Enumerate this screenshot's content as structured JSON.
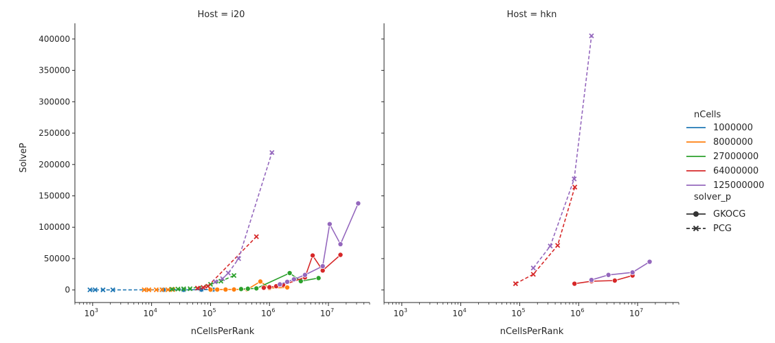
{
  "chart_data": {
    "type": "line",
    "facet_titles": [
      "Host = i20",
      "Host = hkn"
    ],
    "xlabel": "nCellsPerRank",
    "ylabel": "SolveP",
    "x_scale": "log",
    "xlim": [
      500,
      50000000
    ],
    "ylim": [
      -20000,
      425000
    ],
    "x_ticks": [
      1000,
      10000,
      100000,
      1000000,
      10000000
    ],
    "x_tick_labels": [
      [
        "10",
        "3"
      ],
      [
        "10",
        "4"
      ],
      [
        "10",
        "5"
      ],
      [
        "10",
        "6"
      ],
      [
        "10",
        "7"
      ]
    ],
    "y_ticks": [
      0,
      50000,
      100000,
      150000,
      200000,
      250000,
      300000,
      350000,
      400000
    ],
    "y_tick_labels": [
      "0",
      "50000",
      "100000",
      "150000",
      "200000",
      "250000",
      "300000",
      "350000",
      "400000"
    ],
    "legend": {
      "position": "right",
      "hue_title": "nCells",
      "hue_entries": [
        {
          "label": "1000000",
          "color": "#1f77b4"
        },
        {
          "label": "8000000",
          "color": "#ff7f0e"
        },
        {
          "label": "27000000",
          "color": "#2ca02c"
        },
        {
          "label": "64000000",
          "color": "#d62728"
        },
        {
          "label": "125000000",
          "color": "#9467bd"
        }
      ],
      "style_title": "solver_p",
      "style_entries": [
        {
          "label": "GKOCG",
          "marker": "circle",
          "dash": "solid"
        },
        {
          "label": "PCG",
          "marker": "x",
          "dash": "dashed"
        }
      ]
    },
    "panels": [
      {
        "host": "i20",
        "series": [
          {
            "ncells": "1000000",
            "solver": "PCG",
            "points": [
              [
                900,
                200
              ],
              [
                1100,
                200
              ],
              [
                1500,
                150
              ],
              [
                2200,
                150
              ],
              [
                16000,
                300
              ],
              [
                35000,
                300
              ],
              [
                70000,
                500
              ],
              [
                110000,
                600
              ]
            ]
          },
          {
            "ncells": "1000000",
            "solver": "GKOCG",
            "points": [
              [
                16000,
                300
              ],
              [
                35000,
                300
              ],
              [
                70000,
                500
              ],
              [
                110000,
                600
              ]
            ]
          },
          {
            "ncells": "8000000",
            "solver": "PCG",
            "points": [
              [
                7500,
                300
              ],
              [
                9000,
                300
              ],
              [
                12000,
                300
              ],
              [
                15000,
                400
              ],
              [
                19000,
                400
              ],
              [
                23000,
                600
              ]
            ]
          },
          {
            "ncells": "8000000",
            "solver": "GKOCG",
            "points": [
              [
                100000,
                500
              ],
              [
                130000,
                600
              ],
              [
                180000,
                700
              ],
              [
                250000,
                800
              ],
              [
                420000,
                800
              ],
              [
                700000,
                13500
              ],
              [
                1000000,
                3000
              ],
              [
                2000000,
                4000
              ]
            ]
          },
          {
            "ncells": "27000000",
            "solver": "PCG",
            "points": [
              [
                22000,
                1200
              ],
              [
                28000,
                1500
              ],
              [
                35000,
                1800
              ],
              [
                45000,
                2000
              ],
              [
                100000,
                9000
              ],
              [
                150000,
                14000
              ],
              [
                250000,
                23000
              ]
            ]
          },
          {
            "ncells": "27000000",
            "solver": "GKOCG",
            "points": [
              [
                330000,
                1500
              ],
              [
                430000,
                2000
              ],
              [
                600000,
                2500
              ],
              [
                2200000,
                27000
              ],
              [
                3400000,
                14000
              ],
              [
                6800000,
                19000
              ]
            ]
          },
          {
            "ncells": "64000000",
            "solver": "PCG",
            "points": [
              [
                60000,
                3000
              ],
              [
                75000,
                4000
              ],
              [
                90000,
                6000
              ],
              [
                600000,
                85000
              ]
            ]
          },
          {
            "ncells": "64000000",
            "solver": "GKOCG",
            "points": [
              [
                800000,
                3500
              ],
              [
                1000000,
                4500
              ],
              [
                1300000,
                6000
              ],
              [
                1700000,
                8000
              ],
              [
                4000000,
                20000
              ],
              [
                5400000,
                55000
              ],
              [
                8000000,
                31000
              ],
              [
                16000000,
                56000
              ]
            ]
          },
          {
            "ncells": "125000000",
            "solver": "PCG",
            "points": [
              [
                120000,
                13000
              ],
              [
                160000,
                18000
              ],
              [
                200000,
                27000
              ],
              [
                300000,
                50000
              ],
              [
                1100000,
                219000
              ]
            ]
          },
          {
            "ncells": "125000000",
            "solver": "GKOCG",
            "points": [
              [
                1500000,
                9000
              ],
              [
                2000000,
                13000
              ],
              [
                2600000,
                17000
              ],
              [
                4000000,
                24000
              ],
              [
                8000000,
                38000
              ],
              [
                10500000,
                105000
              ],
              [
                16000000,
                73000
              ],
              [
                32000000,
                138000
              ]
            ]
          }
        ]
      },
      {
        "host": "hkn",
        "series": [
          {
            "ncells": "64000000",
            "solver": "PCG",
            "points": [
              [
                85000,
                10000
              ],
              [
                170000,
                25000
              ],
              [
                440000,
                71000
              ],
              [
                860000,
                164000
              ]
            ]
          },
          {
            "ncells": "64000000",
            "solver": "GKOCG",
            "points": [
              [
                850000,
                10000
              ],
              [
                1650000,
                14000
              ],
              [
                4100000,
                15000
              ],
              [
                8200000,
                23000
              ]
            ]
          },
          {
            "ncells": "125000000",
            "solver": "PCG",
            "points": [
              [
                170000,
                35000
              ],
              [
                330000,
                70000
              ],
              [
                840000,
                177000
              ],
              [
                1650000,
                405000
              ]
            ]
          },
          {
            "ncells": "125000000",
            "solver": "GKOCG",
            "points": [
              [
                1650000,
                16000
              ],
              [
                3200000,
                24000
              ],
              [
                8200000,
                28000
              ],
              [
                16000000,
                45000
              ]
            ]
          }
        ]
      }
    ]
  }
}
